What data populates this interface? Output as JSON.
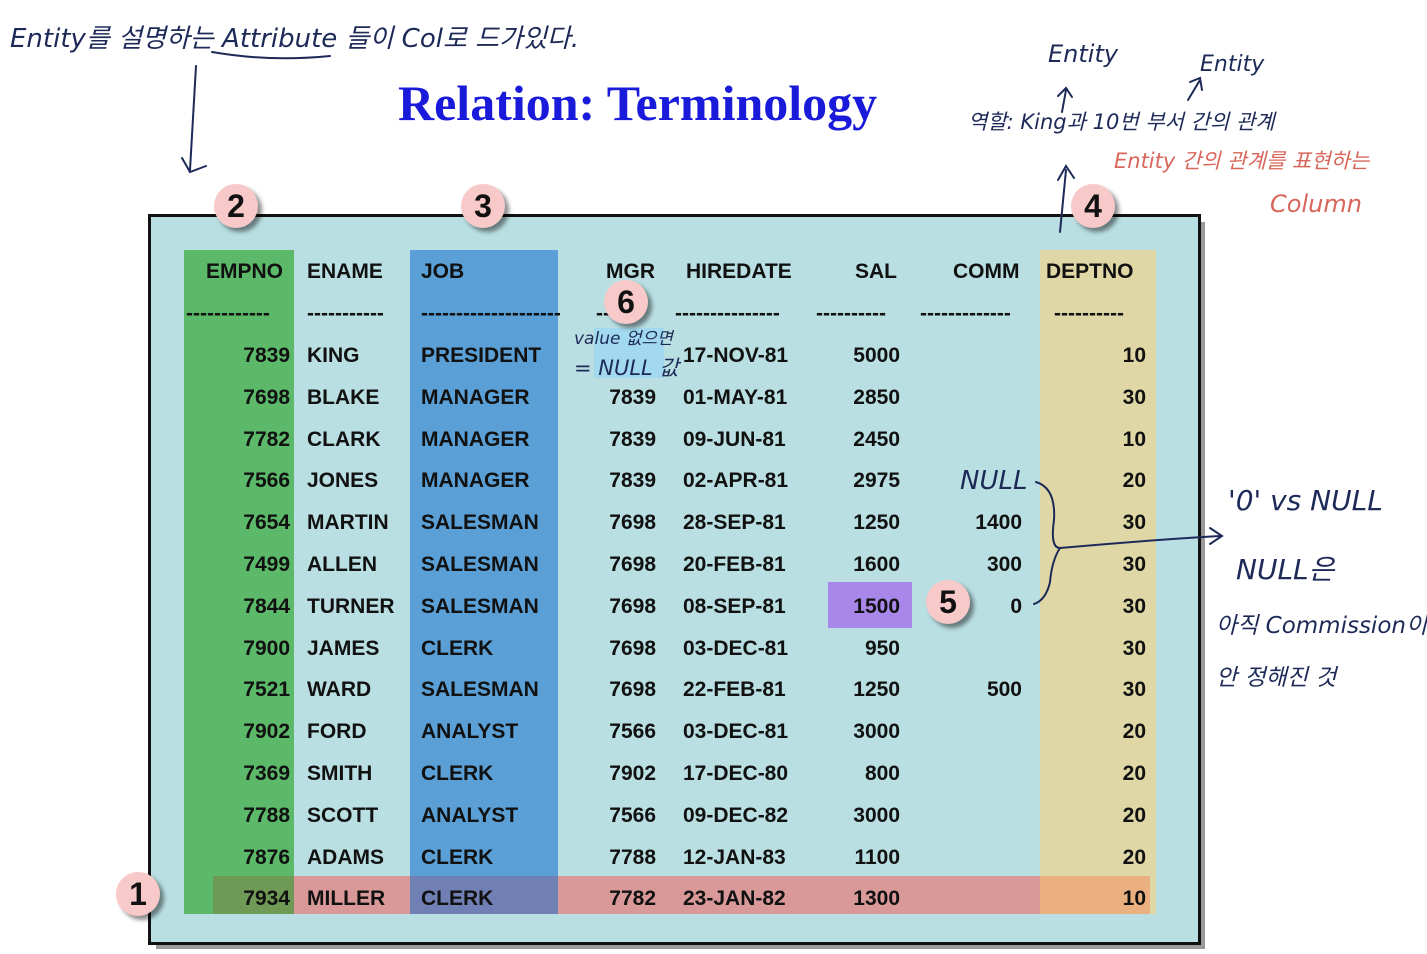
{
  "title": "Relation: Terminology",
  "columns": [
    "EMPNO",
    "ENAME",
    "JOB",
    "MGR",
    "HIREDATE",
    "SAL",
    "COMM",
    "DEPTNO"
  ],
  "dashes": [
    "------------",
    "-----------",
    "--------------------",
    "---",
    "---------------",
    "----------",
    "-------------",
    "----------"
  ],
  "rows": [
    [
      "7839",
      "KING",
      "PRESIDENT",
      "",
      "17-NOV-81",
      "5000",
      "",
      "10"
    ],
    [
      "7698",
      "BLAKE",
      "MANAGER",
      "7839",
      "01-MAY-81",
      "2850",
      "",
      "30"
    ],
    [
      "7782",
      "CLARK",
      "MANAGER",
      "7839",
      "09-JUN-81",
      "2450",
      "",
      "10"
    ],
    [
      "7566",
      "JONES",
      "MANAGER",
      "7839",
      "02-APR-81",
      "2975",
      "",
      "20"
    ],
    [
      "7654",
      "MARTIN",
      "SALESMAN",
      "7698",
      "28-SEP-81",
      "1250",
      "1400",
      "30"
    ],
    [
      "7499",
      "ALLEN",
      "SALESMAN",
      "7698",
      "20-FEB-81",
      "1600",
      "300",
      "30"
    ],
    [
      "7844",
      "TURNER",
      "SALESMAN",
      "7698",
      "08-SEP-81",
      "1500",
      "0",
      "30"
    ],
    [
      "7900",
      "JAMES",
      "CLERK",
      "7698",
      "03-DEC-81",
      "950",
      "",
      "30"
    ],
    [
      "7521",
      "WARD",
      "SALESMAN",
      "7698",
      "22-FEB-81",
      "1250",
      "500",
      "30"
    ],
    [
      "7902",
      "FORD",
      "ANALYST",
      "7566",
      "03-DEC-81",
      "3000",
      "",
      "20"
    ],
    [
      "7369",
      "SMITH",
      "CLERK",
      "7902",
      "17-DEC-80",
      "800",
      "",
      "20"
    ],
    [
      "7788",
      "SCOTT",
      "ANALYST",
      "7566",
      "09-DEC-82",
      "3000",
      "",
      "20"
    ],
    [
      "7876",
      "ADAMS",
      "CLERK",
      "7788",
      "12-JAN-83",
      "1100",
      "",
      "20"
    ],
    [
      "7934",
      "MILLER",
      "CLERK",
      "7782",
      "23-JAN-82",
      "1300",
      "",
      "10"
    ]
  ],
  "badges": [
    "1",
    "2",
    "3",
    "4",
    "5",
    "6"
  ],
  "colors": {
    "title": "#1a1adb",
    "panel": "#b9dfe2",
    "primary_key_column": "#5cb96a",
    "job_column": "#5aa0d6",
    "foreign_key_column": "#dfd8a6",
    "row_highlight": "#d99999",
    "sal_highlight": "#a987ea",
    "null_highlight": "#9fd8f0",
    "badge": "#f7c9c9",
    "handwriting_blue": "#1d2a57",
    "handwriting_red": "#d9665a"
  },
  "notes": {
    "top_left": "Entity를 설명하는 Attribute 들이 Col로 드가있다.",
    "entity_1": "Entity",
    "entity_2": "Entity",
    "role": "역할: King과 10번 부서 간의 관계",
    "relation_red_1": "Entity 간의 관계를 표현하는",
    "relation_red_2": "Column",
    "value_empty_1": "value 없으면",
    "value_empty_2": "= NULL 값",
    "null_mark": "NULL",
    "zero_vs_null": "'0' vs NULL",
    "null_is": "NULL은",
    "not_yet_1": "아직 Commission이",
    "not_yet_2": "안 정해진 것"
  }
}
